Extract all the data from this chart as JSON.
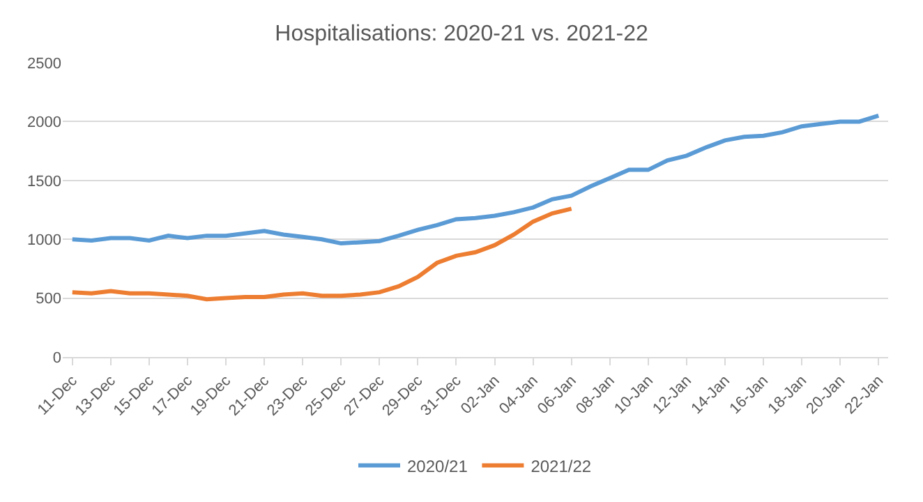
{
  "chart_data": {
    "type": "line",
    "title": "Hospitalisations: 2020-21 vs. 2021-22",
    "categories": [
      "11-Dec",
      null,
      "13-Dec",
      null,
      "15-Dec",
      null,
      "17-Dec",
      null,
      "19-Dec",
      null,
      "21-Dec",
      null,
      "23-Dec",
      null,
      "25-Dec",
      null,
      "27-Dec",
      null,
      "29-Dec",
      null,
      "31-Dec",
      null,
      "02-Jan",
      null,
      "04-Jan",
      null,
      "06-Jan",
      null,
      "08-Jan",
      null,
      "10-Jan",
      null,
      "12-Jan",
      null,
      "14-Jan",
      null,
      "16-Jan",
      null,
      "18-Jan",
      null,
      "20-Jan",
      null,
      "22-Jan"
    ],
    "series": [
      {
        "name": "2020/21",
        "color": "#5b9bd5",
        "values": [
          1000,
          990,
          1010,
          1010,
          990,
          1030,
          1010,
          1030,
          1030,
          1050,
          1070,
          1040,
          1020,
          1000,
          965,
          975,
          985,
          1030,
          1080,
          1120,
          1170,
          1180,
          1200,
          1230,
          1270,
          1340,
          1370,
          1450,
          1520,
          1590,
          1590,
          1670,
          1710,
          1780,
          1840,
          1870,
          1880,
          1910,
          1960,
          1980,
          2000,
          2000,
          2050
        ]
      },
      {
        "name": "2021/22",
        "color": "#ed7d31",
        "values": [
          550,
          540,
          560,
          540,
          540,
          530,
          520,
          490,
          500,
          510,
          510,
          530,
          540,
          520,
          520,
          530,
          550,
          600,
          680,
          800,
          860,
          890,
          950,
          1040,
          1150,
          1220,
          1260,
          null,
          null,
          null,
          null,
          null,
          null,
          null,
          null,
          null,
          null,
          null,
          null,
          null,
          null,
          null,
          null
        ]
      }
    ],
    "ylim": [
      0,
      2500
    ],
    "yticks": [
      0,
      500,
      1000,
      1500,
      2000,
      2500
    ],
    "grid": "y",
    "legend": "bottom",
    "marker": "none",
    "line_style": "solid"
  }
}
